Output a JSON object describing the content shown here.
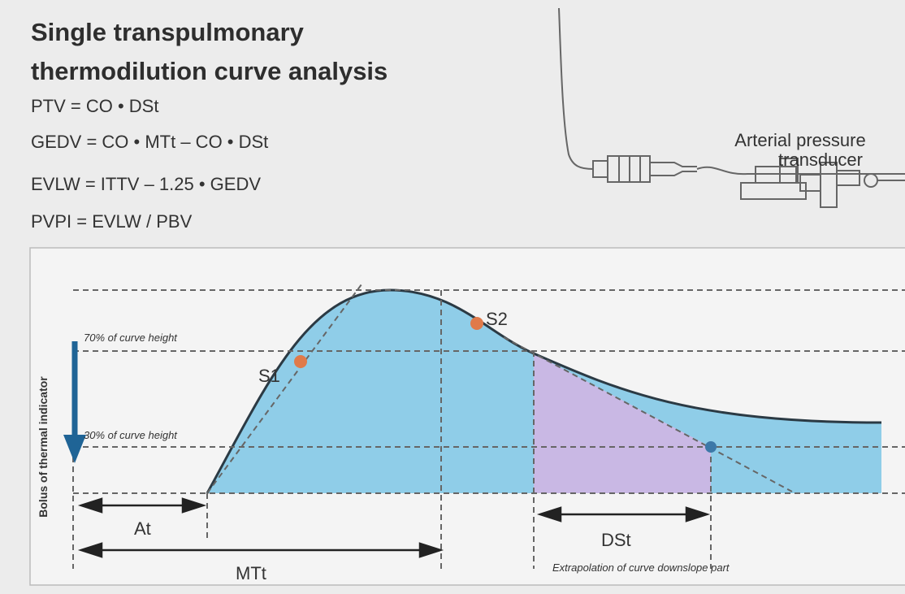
{
  "header": {
    "title": [
      "Single transpulmonary",
      "thermodilution curve analysis"
    ],
    "formulas": [
      "PTV = CO • DSt",
      "GEDV = CO • MTt – CO • DSt",
      "EVLW = ITTV – 1.25 • GEDV",
      "PVPI = EVLW / PBV"
    ]
  },
  "transducer": {
    "label": [
      "Arterial pressure",
      "transducer"
    ]
  },
  "diagram": {
    "y_axis_label": "Bolus of thermal indicator",
    "levels": [
      "70% of curve height",
      "30% of curve height"
    ],
    "points": [
      "S1",
      "S2"
    ],
    "intervals": [
      "At",
      "MTt",
      "DSt"
    ],
    "note": "Extrapolation of curve downslope part"
  }
}
